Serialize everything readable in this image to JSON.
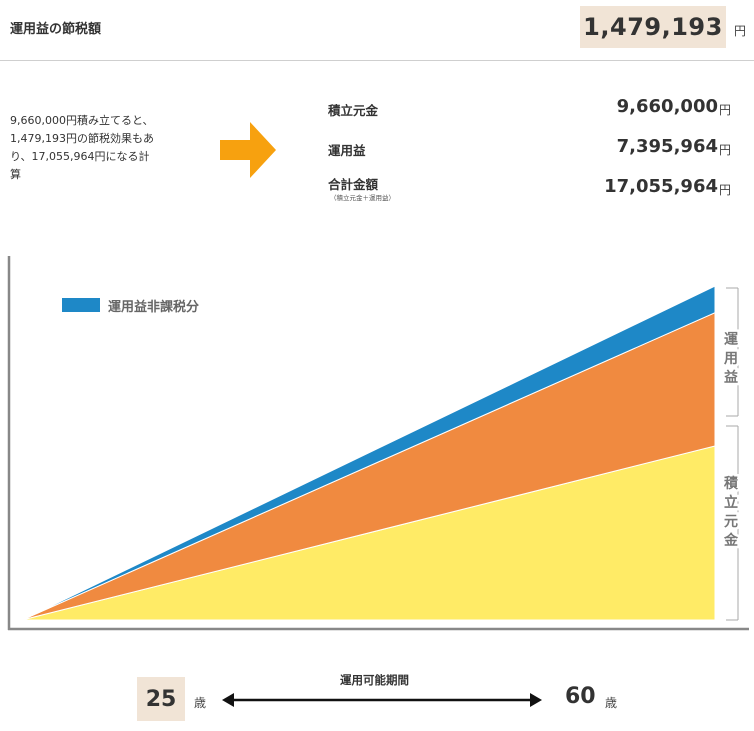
{
  "header": {
    "title": "運用益の節税額",
    "amount": "1,479,193",
    "unit": "円"
  },
  "explanation": {
    "lines": [
      "9,660,000円積み立てると、",
      "1,479,193円の節税効果もあ",
      "り、17,055,964円になる計",
      "算"
    ]
  },
  "summary": {
    "principal_label": "積立元金",
    "principal_value": "9,660,000",
    "gain_label": "運用益",
    "gain_value": "7,395,964",
    "total_label": "合計金額",
    "total_note": "（積立元金＋運用益）",
    "total_value": "17,055,964",
    "unit": "円"
  },
  "chart_data": {
    "type": "area",
    "x": [
      25,
      60
    ],
    "series": [
      {
        "name": "積立元金",
        "values": [
          0,
          9660000
        ],
        "color": "#ffeb66"
      },
      {
        "name": "運用益",
        "values": [
          0,
          7395964
        ],
        "color": "#f08a40"
      },
      {
        "name": "運用益非課税分",
        "values": [
          0,
          1479193
        ],
        "color": "#1e88c7"
      }
    ],
    "legend": "運用益非課税分",
    "side_labels": {
      "gain": "運用益",
      "principal": "積立元金"
    }
  },
  "period": {
    "label": "運用可能期間",
    "start_age": "25",
    "end_age": "60",
    "unit": "歳"
  },
  "colors": {
    "accent_box": "#f1e4d6",
    "arrow": "#f7a10f",
    "principal": "#ffeb66",
    "gain": "#f08a40",
    "tax_free": "#1e88c7"
  }
}
